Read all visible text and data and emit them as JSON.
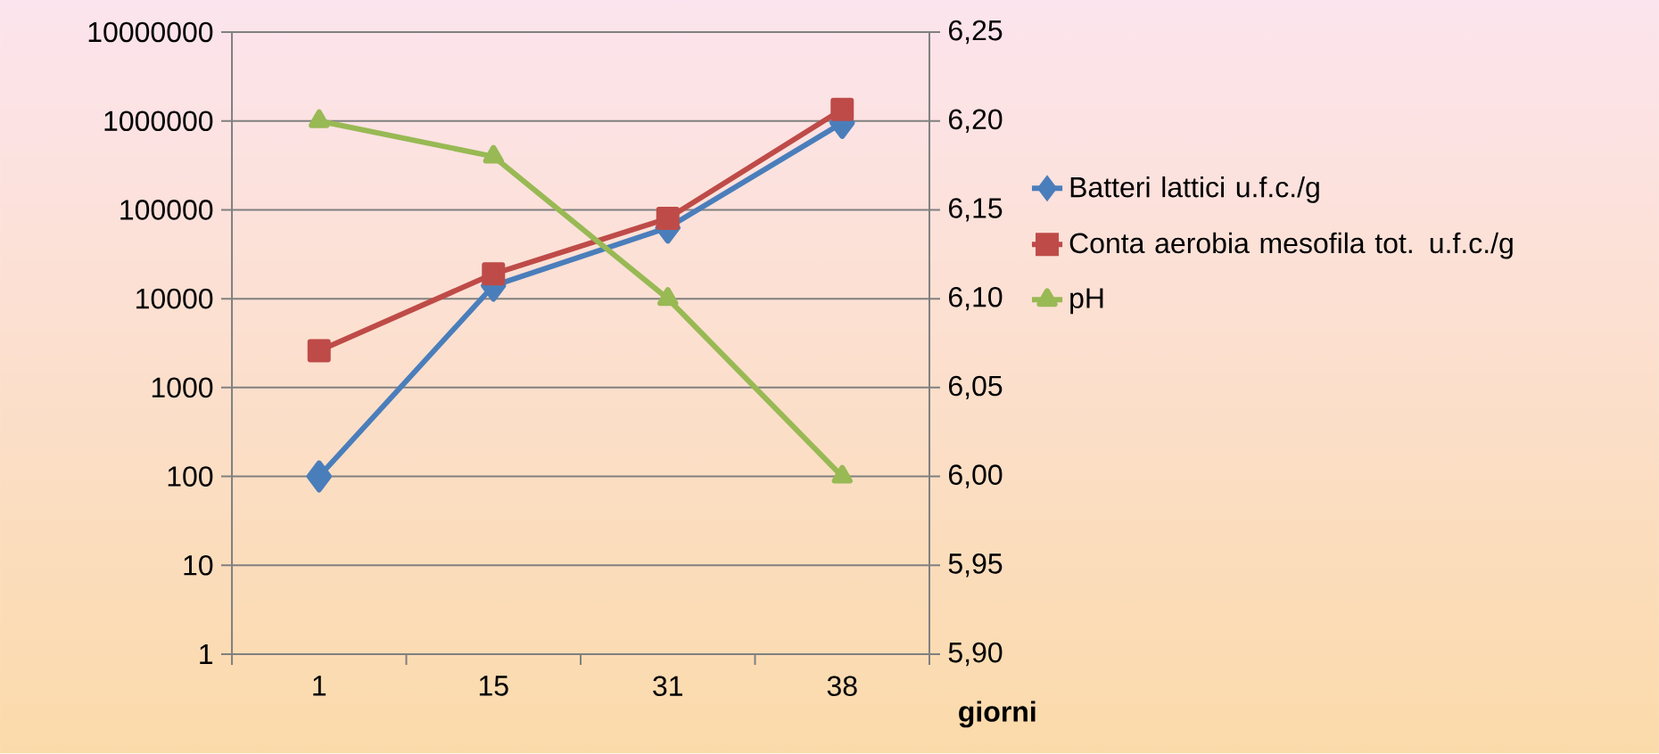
{
  "chart_data": {
    "type": "line",
    "xlabel": "giorni",
    "categories": [
      "1",
      "15",
      "31",
      "38"
    ],
    "series": [
      {
        "name": "Batteri lattici u.f.c./g",
        "color": "#4a7ebb",
        "marker": "diamond",
        "values": [
          100,
          14000,
          63000,
          950000
        ]
      },
      {
        "name": "Conta aerobia mesofila tot. u.f.c./g",
        "color": "#be4b48",
        "marker": "square",
        "values": [
          2600,
          19000,
          80000,
          1350000
        ]
      },
      {
        "name": "pH",
        "color": "#98b954",
        "marker": "triangle",
        "axis": "y2",
        "values": [
          6.2,
          6.18,
          6.1,
          6.0
        ]
      }
    ],
    "log": "y",
    "ylim": [
      1,
      10000000
    ],
    "yticks": [
      1,
      10,
      100,
      1000,
      10000,
      100000,
      1000000,
      10000000
    ],
    "y2lim": [
      5.9,
      6.25
    ],
    "y2ticks": [
      {
        "value": 5.9,
        "label": "5,90"
      },
      {
        "value": 5.95,
        "label": "5,95"
      },
      {
        "value": 6.0,
        "label": "6,00"
      },
      {
        "value": 6.05,
        "label": "6,05"
      },
      {
        "value": 6.1,
        "label": "6,10"
      },
      {
        "value": 6.15,
        "label": "6,15"
      },
      {
        "value": 6.2,
        "label": "6,20"
      },
      {
        "value": 6.25,
        "label": "6,25"
      }
    ],
    "grid": "y",
    "legend": "right",
    "line_style": "solid"
  }
}
